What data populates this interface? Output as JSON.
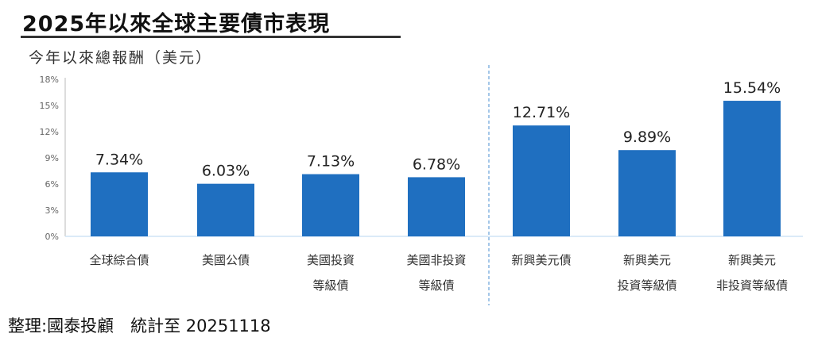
{
  "header": {
    "title": "2025年以來全球主要債市表現",
    "subtitle": "今年以來總報酬（美元）"
  },
  "footer": {
    "text": "整理:國泰投顧　統計至 20251118"
  },
  "chart_data": {
    "type": "bar",
    "title": "2025年以來全球主要債市表現",
    "ylabel": "今年以來總報酬（美元）",
    "ylim": [
      0,
      18
    ],
    "yticks": [
      "0%",
      "3%",
      "6%",
      "9%",
      "12%",
      "15%",
      "18%"
    ],
    "categories": [
      [
        "全球綜合債"
      ],
      [
        "美國公債"
      ],
      [
        "美國投資",
        "等級債"
      ],
      [
        "美國非投資",
        "等級債"
      ],
      [
        "新興美元債"
      ],
      [
        "新興美元",
        "投資等級債"
      ],
      [
        "新興美元",
        "非投資等級債"
      ]
    ],
    "values": [
      7.34,
      6.03,
      7.13,
      6.78,
      12.71,
      9.89,
      15.54
    ],
    "data_labels": [
      "7.34%",
      "6.03%",
      "7.13%",
      "6.78%",
      "12.71%",
      "9.89%",
      "15.54%"
    ],
    "separator_after_index": 3,
    "grid": false,
    "bar_color": "#1f6fc0"
  }
}
